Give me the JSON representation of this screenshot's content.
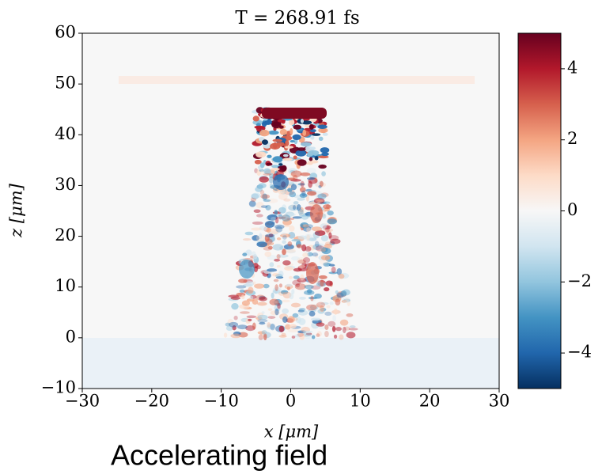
{
  "chart_data": {
    "type": "heatmap",
    "title": "T = 268.91 fs",
    "x_label": "x [μm]",
    "y_label": "z [μm]",
    "xlim": [
      -30,
      30
    ],
    "ylim": [
      -10,
      60
    ],
    "xticks": [
      {
        "value": -30,
        "label": "−30"
      },
      {
        "value": -20,
        "label": "−20"
      },
      {
        "value": -10,
        "label": "−10"
      },
      0,
      10,
      20,
      30
    ],
    "yticks": [
      {
        "value": -10,
        "label": "−10"
      },
      0,
      10,
      20,
      30,
      40,
      50,
      60
    ],
    "clim": [
      -5,
      5
    ],
    "cticks": [
      {
        "value": -4,
        "label": "−4"
      },
      {
        "value": -2,
        "label": "−2"
      },
      0,
      2,
      4
    ]
  },
  "caption": "Accelerating field"
}
